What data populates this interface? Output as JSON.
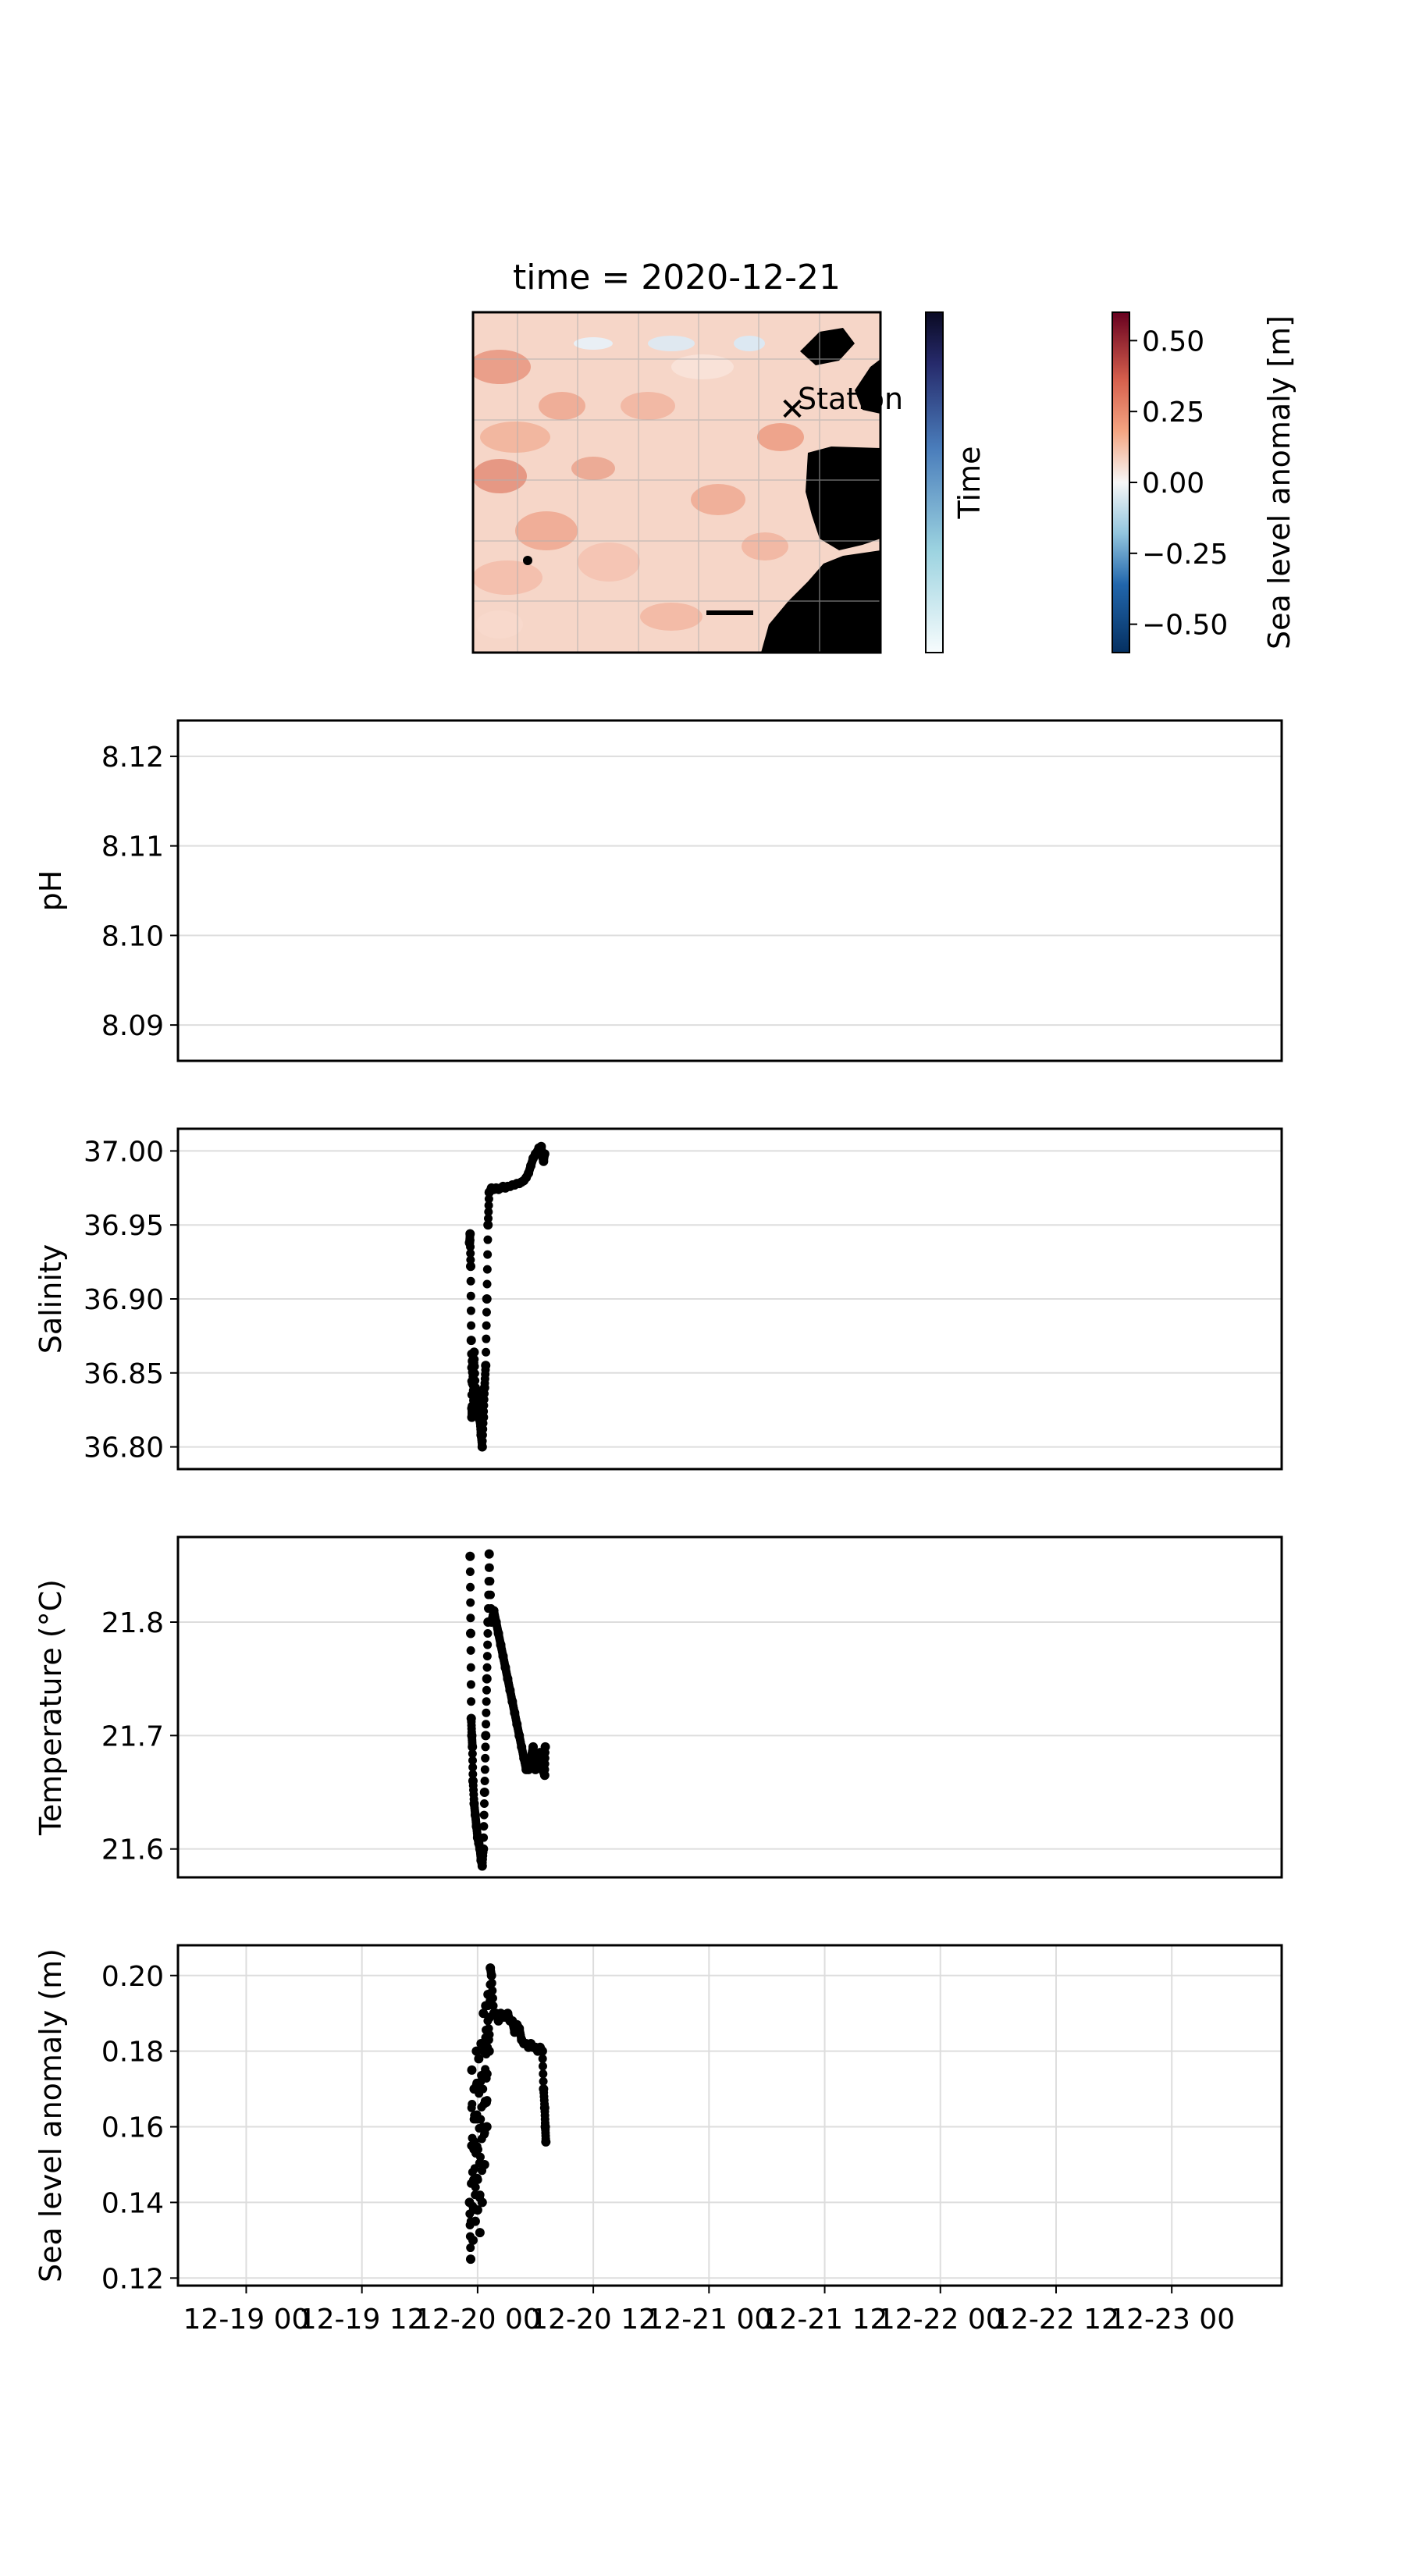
{
  "figure": {
    "map": {
      "title": "time = 2020-12-21",
      "station_label": "Station",
      "time_colorbar_label": "Time",
      "sla_colorbar_label": "Sea level anomaly [m]",
      "sla_colorbar_ticks": [
        "0.50",
        "0.25",
        "0.00",
        "−0.25",
        "−0.50"
      ],
      "sla_colorbar_values": [
        0.5,
        0.25,
        0.0,
        -0.25,
        -0.5
      ],
      "sla_range": [
        -0.6,
        0.6
      ],
      "colors": {
        "land": "#000000",
        "station": "#0000cc",
        "anomaly_high": "#67001f",
        "anomaly_low": "#053061",
        "time_dark": "#0a0a23",
        "time_light": "#f7fcfd"
      }
    }
  },
  "chart_data": [
    {
      "type": "scatter",
      "ylabel": "pH",
      "ylim": [
        8.086,
        8.124
      ],
      "yticks": [
        8.09,
        8.1,
        8.11,
        8.12
      ],
      "ytick_labels": [
        "8.09",
        "8.10",
        "8.11",
        "8.12"
      ],
      "grid": true,
      "series": []
    },
    {
      "type": "scatter",
      "ylabel": "Salinity",
      "ylim": [
        36.785,
        37.015
      ],
      "yticks": [
        36.8,
        36.85,
        36.9,
        36.95,
        37.0
      ],
      "ytick_labels": [
        "36.80",
        "36.85",
        "36.90",
        "36.95",
        "37.00"
      ],
      "grid": true,
      "series": [
        {
          "x": [
            1.93,
            1.935,
            1.94,
            1.945,
            1.95,
            1.95,
            1.955,
            1.96,
            1.965,
            1.97,
            1.98,
            1.99,
            2.0,
            2.01,
            2.02,
            2.03,
            2.04,
            2.05,
            2.06,
            2.07,
            2.08,
            2.09,
            2.1,
            2.12,
            2.14,
            2.16,
            2.18,
            2.2,
            2.22,
            2.24,
            2.26,
            2.28,
            2.3,
            2.32,
            2.34,
            2.36,
            2.38,
            2.4,
            2.42,
            2.44,
            2.46,
            2.48,
            2.5,
            2.52,
            2.53,
            2.54,
            2.55,
            2.56,
            2.57,
            2.58
          ],
          "y": [
            36.938,
            36.944,
            36.922,
            36.872,
            36.826,
            36.82,
            36.858,
            36.845,
            36.828,
            36.864,
            36.84,
            36.838,
            36.828,
            36.822,
            36.818,
            36.808,
            36.8,
            36.82,
            36.84,
            36.855,
            36.9,
            36.95,
            36.972,
            36.975,
            36.974,
            36.975,
            36.974,
            36.975,
            36.976,
            36.975,
            36.976,
            36.976,
            36.977,
            36.977,
            36.978,
            36.978,
            36.979,
            36.98,
            36.982,
            36.985,
            36.99,
            36.995,
            36.998,
            37.0,
            37.002,
            37.001,
            37.003,
            36.996,
            36.993,
            36.998
          ]
        }
      ]
    },
    {
      "type": "scatter",
      "ylabel": "Temperature (°C)",
      "ylim": [
        21.575,
        21.875
      ],
      "yticks": [
        21.6,
        21.7,
        21.8
      ],
      "ytick_labels": [
        "21.6",
        "21.7",
        "21.8"
      ],
      "grid": true,
      "series": [
        {
          "x": [
            1.935,
            1.94,
            1.945,
            1.95,
            1.955,
            1.96,
            1.97,
            1.98,
            1.99,
            2.0,
            2.01,
            2.02,
            2.03,
            2.04,
            2.05,
            2.06,
            2.07,
            2.08,
            2.09,
            2.1,
            2.12,
            2.14,
            2.16,
            2.18,
            2.2,
            2.22,
            2.24,
            2.26,
            2.28,
            2.3,
            2.32,
            2.34,
            2.36,
            2.38,
            2.4,
            2.42,
            2.44,
            2.46,
            2.48,
            2.5,
            2.52,
            2.54,
            2.56,
            2.58,
            2.585
          ],
          "y": [
            21.858,
            21.79,
            21.715,
            21.7,
            21.69,
            21.66,
            21.64,
            21.63,
            21.62,
            21.61,
            21.605,
            21.6,
            21.59,
            21.585,
            21.6,
            21.65,
            21.7,
            21.75,
            21.8,
            21.86,
            21.8,
            21.81,
            21.8,
            21.79,
            21.78,
            21.77,
            21.76,
            21.75,
            21.74,
            21.73,
            21.72,
            21.71,
            21.7,
            21.69,
            21.68,
            21.67,
            21.67,
            21.68,
            21.69,
            21.67,
            21.68,
            21.685,
            21.67,
            21.665,
            21.69
          ]
        }
      ]
    },
    {
      "type": "scatter",
      "ylabel": "Sea level anomaly (m)",
      "ylim": [
        0.118,
        0.208
      ],
      "yticks": [
        0.12,
        0.14,
        0.16,
        0.18,
        0.2
      ],
      "ytick_labels": [
        "0.12",
        "0.14",
        "0.16",
        "0.18",
        "0.20"
      ],
      "xticks": [
        0,
        1,
        2,
        3,
        4,
        5,
        6,
        7,
        8
      ],
      "xtick_labels": [
        "12-19 00",
        "12-19 12",
        "12-20 00",
        "12-20 12",
        "12-21 00",
        "12-21 12",
        "12-22 00",
        "12-22 12",
        "12-23 00"
      ],
      "xlim": [
        -0.59,
        8.95
      ],
      "grid": true,
      "series": [
        {
          "x": [
            1.93,
            1.94,
            1.95,
            1.96,
            1.97,
            1.98,
            1.99,
            2.0,
            2.01,
            2.02,
            2.03,
            2.04,
            2.05,
            2.06,
            2.07,
            2.08,
            2.09,
            2.1,
            2.11,
            2.12,
            2.14,
            2.16,
            2.18,
            2.2,
            2.22,
            2.24,
            2.26,
            2.28,
            2.3,
            2.32,
            2.34,
            2.36,
            2.38,
            2.4,
            2.42,
            2.44,
            2.46,
            2.48,
            2.5,
            2.52,
            2.54,
            2.56,
            2.57,
            2.58,
            2.585,
            2.59
          ],
          "y": [
            0.14,
            0.125,
            0.175,
            0.13,
            0.17,
            0.135,
            0.18,
            0.138,
            0.178,
            0.132,
            0.182,
            0.14,
            0.19,
            0.15,
            0.192,
            0.16,
            0.195,
            0.18,
            0.202,
            0.2,
            0.19,
            0.19,
            0.188,
            0.19,
            0.189,
            0.189,
            0.19,
            0.188,
            0.188,
            0.185,
            0.187,
            0.186,
            0.183,
            0.182,
            0.182,
            0.181,
            0.182,
            0.181,
            0.181,
            0.18,
            0.181,
            0.18,
            0.17,
            0.165,
            0.16,
            0.156
          ]
        }
      ]
    }
  ]
}
